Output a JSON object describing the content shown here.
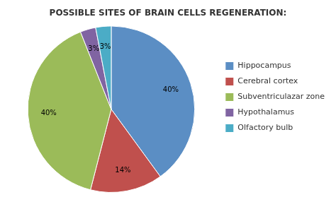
{
  "chart_data": {
    "type": "pie",
    "title": "POSSIBLE SITES OF BRAIN CELLS REGENERATION:",
    "categories": [
      "Hippocampus",
      "Cerebral cortex",
      "Subventriculazar zone",
      "Hypothalamus",
      "Olfactory bulb"
    ],
    "values": [
      40,
      14,
      40,
      3,
      3
    ],
    "value_labels": [
      "40%",
      "14%",
      "40%",
      "3%",
      "3%"
    ],
    "colors": [
      "#5b8ec4",
      "#c0504d",
      "#9bbb59",
      "#8064a2",
      "#4bacc6"
    ],
    "data_labels": true,
    "legend": "right"
  }
}
